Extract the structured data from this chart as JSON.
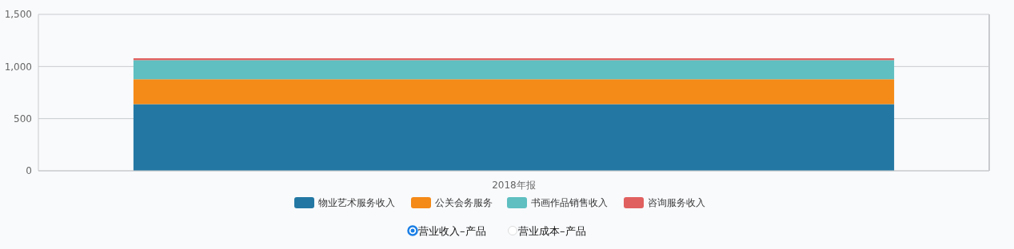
{
  "chart_data": {
    "type": "bar",
    "stacked": true,
    "categories": [
      "2018年报"
    ],
    "series": [
      {
        "name": "物业艺术服务收入",
        "color": "#2378a3",
        "values": [
          639
        ]
      },
      {
        "name": "公关会务服务",
        "color": "#f48a17",
        "values": [
          239
        ]
      },
      {
        "name": "书画作品销售收入",
        "color": "#5fbfc1",
        "values": [
          183
        ]
      },
      {
        "name": "咨询服务收入",
        "color": "#e0605f",
        "values": [
          18
        ]
      }
    ],
    "ylim": [
      0,
      1500
    ],
    "yticks": [
      0,
      {
        "value": 500,
        "label": "500"
      },
      {
        "value": 1000,
        "label": "1,000"
      },
      {
        "value": 1500,
        "label": "1,500"
      }
    ],
    "grid": "y",
    "legend": "bottom",
    "annotations": [
      "营业收入–产品",
      "营业成本–产品"
    ]
  }
}
